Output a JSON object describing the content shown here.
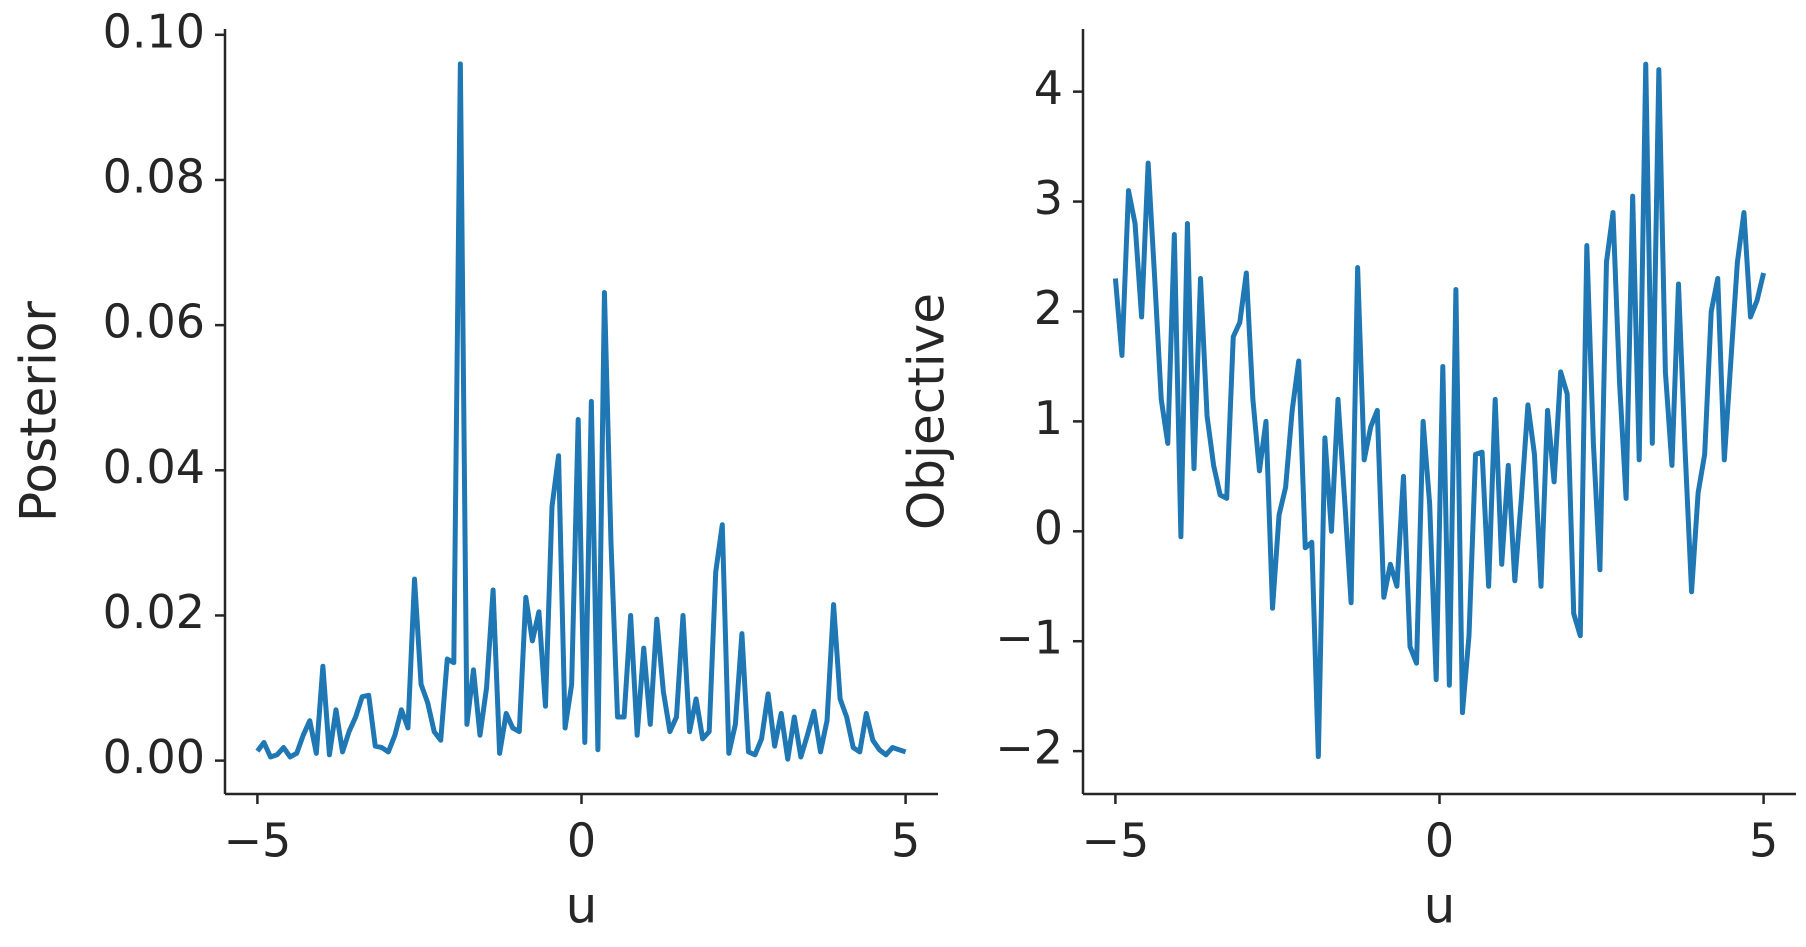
{
  "chart_data": [
    {
      "type": "line",
      "xlabel": "u",
      "ylabel": "Posterior",
      "xlim": [
        -5.5,
        5.5
      ],
      "ylim": [
        -0.0046,
        0.1008
      ],
      "xticks": [
        {
          "value": -5,
          "label": "−5"
        },
        0,
        5
      ],
      "yticks": [
        {
          "value": 0,
          "label": "0.00"
        },
        {
          "value": 0.02,
          "label": "0.02"
        },
        {
          "value": 0.04,
          "label": "0.04"
        },
        {
          "value": 0.06,
          "label": "0.06"
        },
        {
          "value": 0.08,
          "label": "0.08"
        },
        {
          "value": 0.1,
          "label": "0.10"
        }
      ],
      "x": [
        -5,
        -4.899,
        -4.798,
        -4.697,
        -4.596,
        -4.495,
        -4.394,
        -4.293,
        -4.192,
        -4.091,
        -3.99,
        -3.889,
        -3.788,
        -3.687,
        -3.586,
        -3.485,
        -3.384,
        -3.283,
        -3.182,
        -3.081,
        -2.98,
        -2.879,
        -2.778,
        -2.677,
        -2.576,
        -2.475,
        -2.374,
        -2.273,
        -2.172,
        -2.071,
        -1.97,
        -1.869,
        -1.768,
        -1.667,
        -1.566,
        -1.465,
        -1.364,
        -1.263,
        -1.162,
        -1.061,
        -0.96,
        -0.859,
        -0.758,
        -0.657,
        -0.556,
        -0.455,
        -0.354,
        -0.253,
        -0.152,
        -0.051,
        0.051,
        0.152,
        0.253,
        0.354,
        0.455,
        0.556,
        0.657,
        0.758,
        0.859,
        0.96,
        1.061,
        1.162,
        1.263,
        1.364,
        1.465,
        1.566,
        1.667,
        1.768,
        1.869,
        1.97,
        2.071,
        2.172,
        2.273,
        2.374,
        2.475,
        2.576,
        2.677,
        2.778,
        2.879,
        2.98,
        3.081,
        3.182,
        3.283,
        3.384,
        3.485,
        3.586,
        3.687,
        3.788,
        3.889,
        3.99,
        4.091,
        4.192,
        4.293,
        4.394,
        4.495,
        4.596,
        4.697,
        4.798,
        4.899,
        5
      ],
      "series": [
        {
          "color": "#1f77b4",
          "values": [
            0.0013,
            0.0025,
            0.0005,
            0.0008,
            0.0018,
            0.0005,
            0.001,
            0.0035,
            0.0055,
            0.001,
            0.013,
            0.0008,
            0.007,
            0.0012,
            0.004,
            0.006,
            0.0088,
            0.009,
            0.002,
            0.0018,
            0.0012,
            0.0035,
            0.007,
            0.0045,
            0.025,
            0.0105,
            0.008,
            0.004,
            0.0028,
            0.014,
            0.0135,
            0.096,
            0.005,
            0.0125,
            0.0035,
            0.01,
            0.0235,
            0.001,
            0.0065,
            0.0045,
            0.004,
            0.0225,
            0.0165,
            0.0205,
            0.0075,
            0.035,
            0.042,
            0.0045,
            0.0105,
            0.047,
            0.0025,
            0.0495,
            0.0015,
            0.0645,
            0.03,
            0.006,
            0.006,
            0.02,
            0.0035,
            0.0155,
            0.005,
            0.0195,
            0.0095,
            0.004,
            0.006,
            0.02,
            0.004,
            0.0085,
            0.003,
            0.004,
            0.026,
            0.0325,
            0.001,
            0.005,
            0.0175,
            0.0012,
            0.0008,
            0.003,
            0.0092,
            0.002,
            0.0065,
            0.0002,
            0.006,
            0.0005,
            0.0035,
            0.0068,
            0.0012,
            0.0055,
            0.0215,
            0.0085,
            0.006,
            0.0018,
            0.0012,
            0.0065,
            0.0028,
            0.0015,
            0.0008,
            0.0018,
            0.0015,
            0.0012
          ]
        }
      ]
    },
    {
      "type": "line",
      "xlabel": "u",
      "ylabel": "Objective",
      "xlim": [
        -5.5,
        5.5
      ],
      "ylim": [
        -2.39,
        4.57
      ],
      "xticks": [
        {
          "value": -5,
          "label": "−5"
        },
        0,
        5
      ],
      "yticks": [
        {
          "value": -2,
          "label": "−2"
        },
        {
          "value": -1,
          "label": "−1"
        },
        0,
        1,
        2,
        3,
        4
      ],
      "x": [
        -5,
        -4.899,
        -4.798,
        -4.697,
        -4.596,
        -4.495,
        -4.394,
        -4.293,
        -4.192,
        -4.091,
        -3.99,
        -3.889,
        -3.788,
        -3.687,
        -3.586,
        -3.485,
        -3.384,
        -3.283,
        -3.182,
        -3.081,
        -2.98,
        -2.879,
        -2.778,
        -2.677,
        -2.576,
        -2.475,
        -2.374,
        -2.273,
        -2.172,
        -2.071,
        -1.97,
        -1.869,
        -1.768,
        -1.667,
        -1.566,
        -1.465,
        -1.364,
        -1.263,
        -1.162,
        -1.061,
        -0.96,
        -0.859,
        -0.758,
        -0.657,
        -0.556,
        -0.455,
        -0.354,
        -0.253,
        -0.152,
        -0.051,
        0.051,
        0.152,
        0.253,
        0.354,
        0.455,
        0.556,
        0.657,
        0.758,
        0.859,
        0.96,
        1.061,
        1.162,
        1.263,
        1.364,
        1.465,
        1.566,
        1.667,
        1.768,
        1.869,
        1.97,
        2.071,
        2.172,
        2.273,
        2.374,
        2.475,
        2.576,
        2.677,
        2.778,
        2.879,
        2.98,
        3.081,
        3.182,
        3.283,
        3.384,
        3.485,
        3.586,
        3.687,
        3.788,
        3.889,
        3.99,
        4.091,
        4.192,
        4.293,
        4.394,
        4.495,
        4.596,
        4.697,
        4.798,
        4.899,
        5
      ],
      "series": [
        {
          "color": "#1f77b4",
          "values": [
            2.3,
            1.6,
            3.1,
            2.8,
            1.95,
            3.35,
            2.3,
            1.2,
            0.8,
            2.7,
            -0.05,
            2.8,
            0.57,
            2.3,
            1.05,
            0.6,
            0.33,
            0.3,
            1.77,
            1.9,
            2.35,
            1.2,
            0.55,
            1.0,
            -0.7,
            0.15,
            0.4,
            1.1,
            1.55,
            -0.15,
            -0.1,
            -2.05,
            0.85,
            0.0,
            1.2,
            0.3,
            -0.65,
            2.4,
            0.65,
            0.95,
            1.1,
            -0.6,
            -0.3,
            -0.5,
            0.5,
            -1.05,
            -1.2,
            1.0,
            0.25,
            -1.35,
            1.5,
            -1.4,
            2.2,
            -1.65,
            -0.95,
            0.7,
            0.72,
            -0.5,
            1.2,
            -0.3,
            0.6,
            -0.45,
            0.3,
            1.15,
            0.7,
            -0.5,
            1.1,
            0.45,
            1.45,
            1.25,
            -0.75,
            -0.95,
            2.6,
            0.8,
            -0.35,
            2.45,
            2.9,
            1.35,
            0.3,
            3.05,
            0.65,
            4.25,
            0.8,
            4.2,
            1.45,
            0.6,
            2.25,
            0.75,
            -0.55,
            0.35,
            0.7,
            2.0,
            2.3,
            0.65,
            1.55,
            2.45,
            2.9,
            1.95,
            2.1,
            2.35
          ]
        }
      ]
    }
  ]
}
